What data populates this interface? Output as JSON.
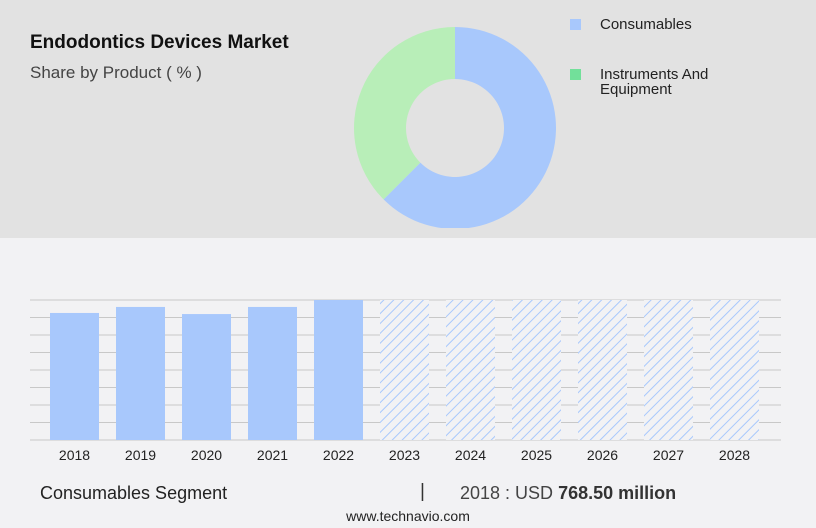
{
  "title": "Endodontics Devices Market",
  "subtitle": "Share by Product ( % )",
  "colors": {
    "consumables": "#a8c8fc",
    "instruments_donut": "#b8eeb8",
    "instruments_legend": "#72e09a",
    "grid": "#c8c8c8"
  },
  "chart_data": [
    {
      "type": "pie",
      "donut": true,
      "slices": [
        {
          "label": "Consumables",
          "value": 62.5
        },
        {
          "label": "Instruments And Equipment",
          "value": 37.5
        }
      ],
      "legend": "right"
    },
    {
      "type": "bar",
      "categories": [
        "2018",
        "2019",
        "2020",
        "2021",
        "2022",
        "2023",
        "2024",
        "2025",
        "2026",
        "2027",
        "2028"
      ],
      "values": [
        768.5,
        805,
        762,
        805,
        847,
        null,
        null,
        null,
        null,
        null,
        null
      ],
      "forecast_from": "2023",
      "forecast_style": "hatched",
      "ylim": [
        0,
        847
      ],
      "grid": true,
      "xlabel": "",
      "ylabel": ""
    }
  ],
  "footer": {
    "segment": "Consumables Segment",
    "separator": "|",
    "value_prefix": "2018 : USD",
    "value": "768.50 million",
    "website": "www.technavio.com"
  }
}
